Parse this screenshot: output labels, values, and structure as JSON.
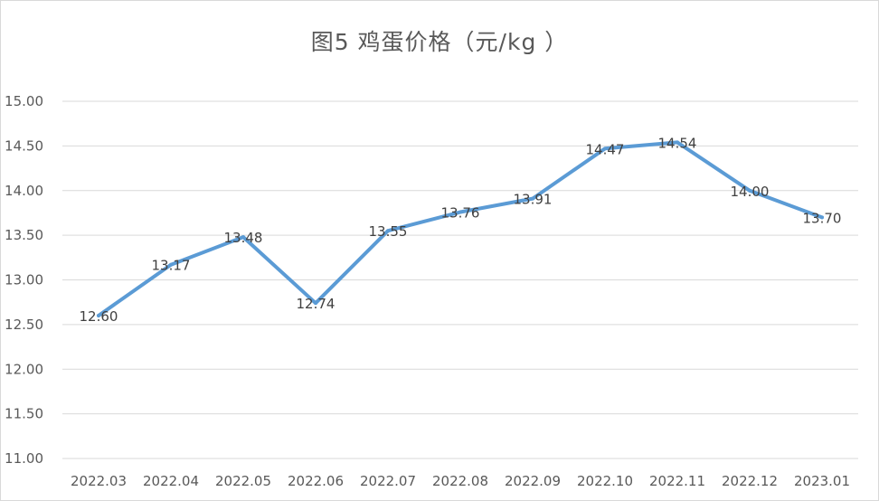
{
  "chart_data": {
    "type": "line",
    "title": "图5  鸡蛋价格（元/kg ）",
    "xlabel": "",
    "ylabel": "",
    "categories": [
      "2022.03",
      "2022.04",
      "2022.05",
      "2022.06",
      "2022.07",
      "2022.08",
      "2022.09",
      "2022.10",
      "2022.11",
      "2022.12",
      "2023.01"
    ],
    "series": [
      {
        "values": [
          12.6,
          13.17,
          13.48,
          12.74,
          13.55,
          13.76,
          13.91,
          14.47,
          14.54,
          14.0,
          13.7
        ],
        "data_labels": [
          "12.60",
          "13.17",
          "13.48",
          "12.74",
          "13.55",
          "13.76",
          "13.91",
          "14.47",
          "14.54",
          "14.00",
          "13.70"
        ],
        "color": "#5b9bd5"
      }
    ],
    "ylim": [
      11.0,
      15.0
    ],
    "y_ticks": [
      "11.00",
      "11.50",
      "12.00",
      "12.50",
      "13.00",
      "13.50",
      "14.00",
      "14.50",
      "15.00"
    ],
    "grid": true,
    "legend": "none"
  }
}
